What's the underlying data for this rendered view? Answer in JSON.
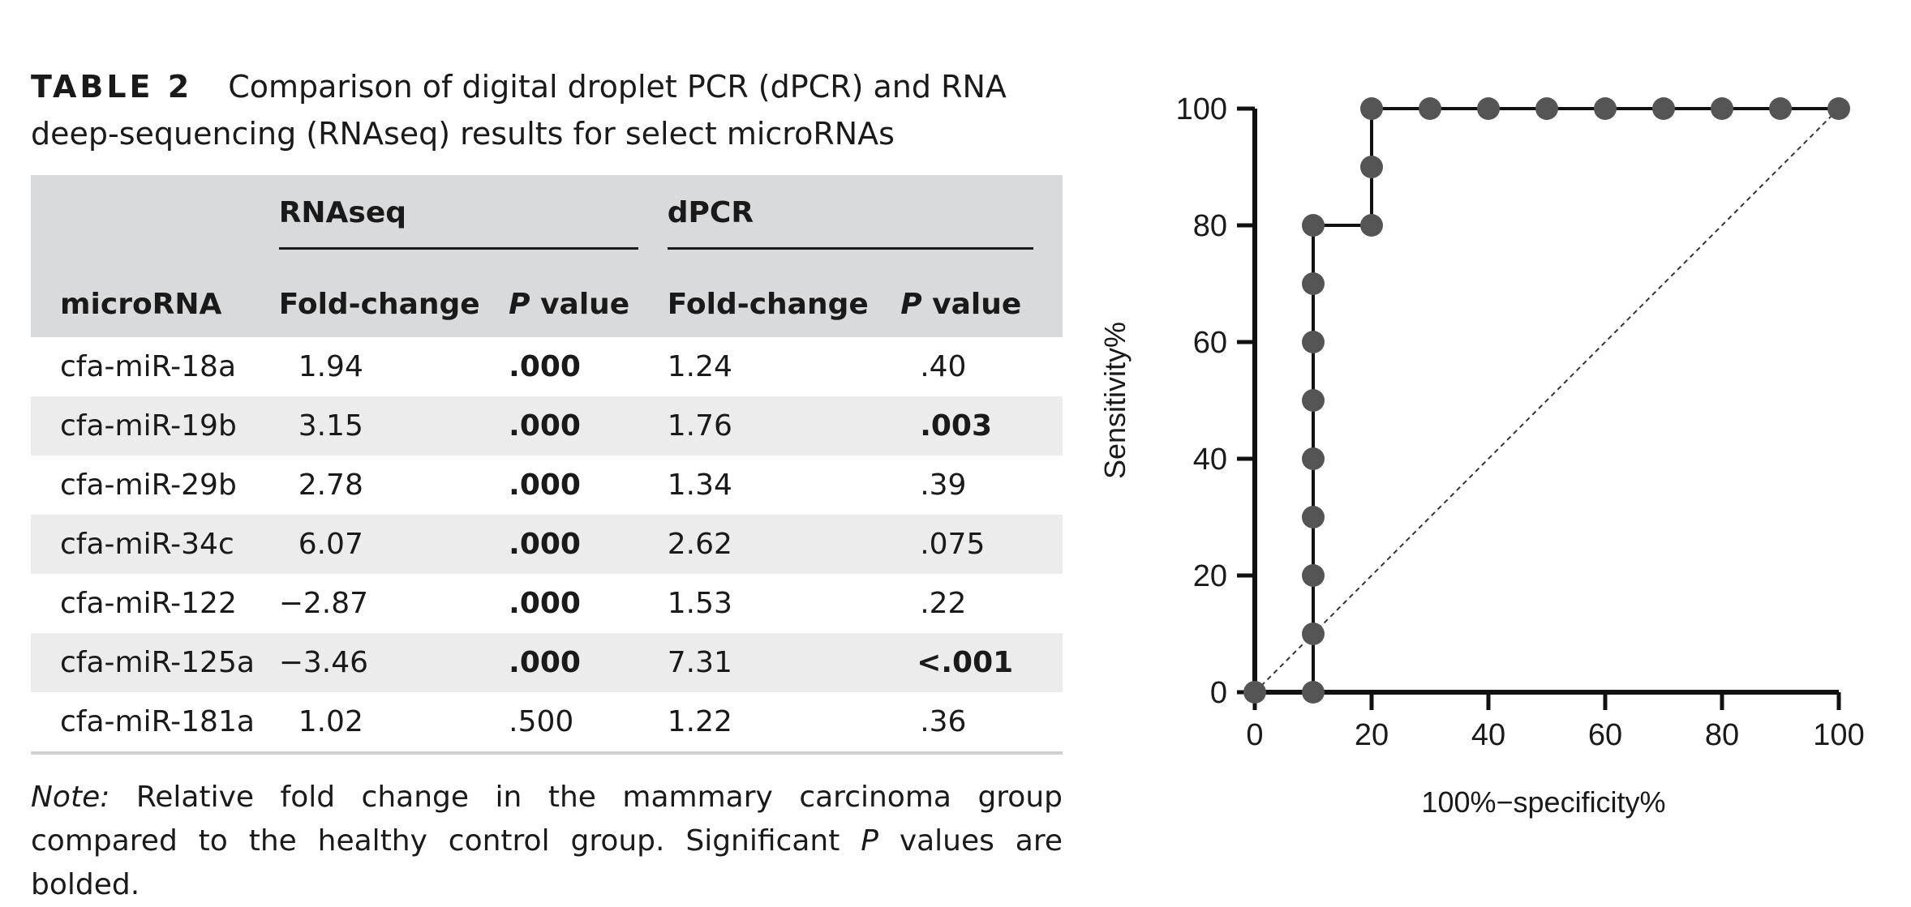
{
  "table": {
    "label": "TABLE 2",
    "caption_line1": "Comparison of digital droplet PCR (dPCR) and RNA",
    "caption_line2": "deep-sequencing (RNAseq) results for select microRNAs",
    "group_headers": [
      "RNAseq",
      "dPCR"
    ],
    "col_mirna": "microRNA",
    "col_fold": "Fold-change",
    "col_p_italic": "P",
    "col_p_rest": " value",
    "rows": [
      {
        "mirna": "cfa-miR-18a",
        "rna_fc": "1.94",
        "rna_p": ".000",
        "rna_p_bold": true,
        "dpcr_fc": "1.24",
        "dpcr_p": ".40",
        "dpcr_p_bold": false
      },
      {
        "mirna": "cfa-miR-19b",
        "rna_fc": "3.15",
        "rna_p": ".000",
        "rna_p_bold": true,
        "dpcr_fc": "1.76",
        "dpcr_p": ".003",
        "dpcr_p_bold": true
      },
      {
        "mirna": "cfa-miR-29b",
        "rna_fc": "2.78",
        "rna_p": ".000",
        "rna_p_bold": true,
        "dpcr_fc": "1.34",
        "dpcr_p": ".39",
        "dpcr_p_bold": false
      },
      {
        "mirna": "cfa-miR-34c",
        "rna_fc": "6.07",
        "rna_p": ".000",
        "rna_p_bold": true,
        "dpcr_fc": "2.62",
        "dpcr_p": ".075",
        "dpcr_p_bold": false
      },
      {
        "mirna": "cfa-miR-122",
        "rna_fc": "−2.87",
        "rna_p": ".000",
        "rna_p_bold": true,
        "dpcr_fc": "1.53",
        "dpcr_p": ".22",
        "dpcr_p_bold": false
      },
      {
        "mirna": "cfa-miR-125a",
        "rna_fc": "−3.46",
        "rna_p": ".000",
        "rna_p_bold": true,
        "dpcr_fc": "7.31",
        "dpcr_p": "<.001",
        "dpcr_p_bold": true
      },
      {
        "mirna": "cfa-miR-181a",
        "rna_fc": "1.02",
        "rna_p": ".500",
        "rna_p_bold": false,
        "dpcr_fc": "1.22",
        "dpcr_p": ".36",
        "dpcr_p_bold": false
      }
    ],
    "note_label": "Note:",
    "note_text1": " Relative fold change in the mammary carcinoma group compared to the healthy control group. Significant ",
    "note_p": "P",
    "note_text2": " values are bolded."
  },
  "chart_data": {
    "type": "line",
    "title": "",
    "xlabel": "100%−specificity%",
    "ylabel": "Sensitivity%",
    "xlim": [
      0,
      100
    ],
    "ylim": [
      0,
      100
    ],
    "xticks": [
      0,
      20,
      40,
      60,
      80,
      100
    ],
    "yticks": [
      0,
      20,
      40,
      60,
      80,
      100
    ],
    "grid": false,
    "series": [
      {
        "x": [
          0,
          10,
          10,
          10,
          10,
          10,
          10,
          10,
          10,
          10,
          20,
          20,
          20,
          30,
          40,
          50,
          60,
          70,
          80,
          90,
          100
        ],
        "y": [
          0,
          0,
          10,
          20,
          30,
          40,
          50,
          60,
          70,
          80,
          80,
          90,
          100,
          100,
          100,
          100,
          100,
          100,
          100,
          100,
          100
        ],
        "color": "#555555",
        "step": true
      }
    ],
    "reference_line": {
      "x": [
        0,
        100
      ],
      "y": [
        0,
        100
      ],
      "style": "dashed"
    }
  }
}
